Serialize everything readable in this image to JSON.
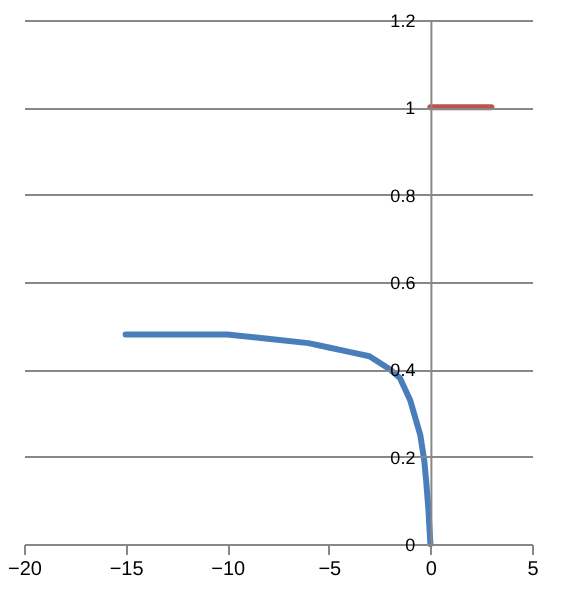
{
  "chart_data": {
    "type": "line",
    "xlim": [
      -20,
      5
    ],
    "xticks": [
      -20,
      -15,
      -10,
      -5,
      0,
      5
    ],
    "ylim": [
      0,
      1.2
    ],
    "yticks": [
      0,
      0.2,
      0.4,
      0.6,
      0.8,
      1,
      1.2
    ],
    "grid": "y",
    "series": [
      {
        "color": "#4a7ebb",
        "x": [
          -15,
          -12,
          -10,
          -8,
          -6,
          -5,
          -4,
          -3,
          -2,
          -1.5,
          -1,
          -0.5,
          -0.3,
          -0.2,
          -0.1,
          0
        ],
        "values": [
          0.48,
          0.48,
          0.48,
          0.47,
          0.46,
          0.45,
          0.44,
          0.43,
          0.4,
          0.38,
          0.33,
          0.25,
          0.19,
          0.14,
          0.08,
          0
        ]
      },
      {
        "color": "#c0504d",
        "x": [
          0,
          3
        ],
        "values": [
          1,
          1
        ]
      }
    ]
  }
}
